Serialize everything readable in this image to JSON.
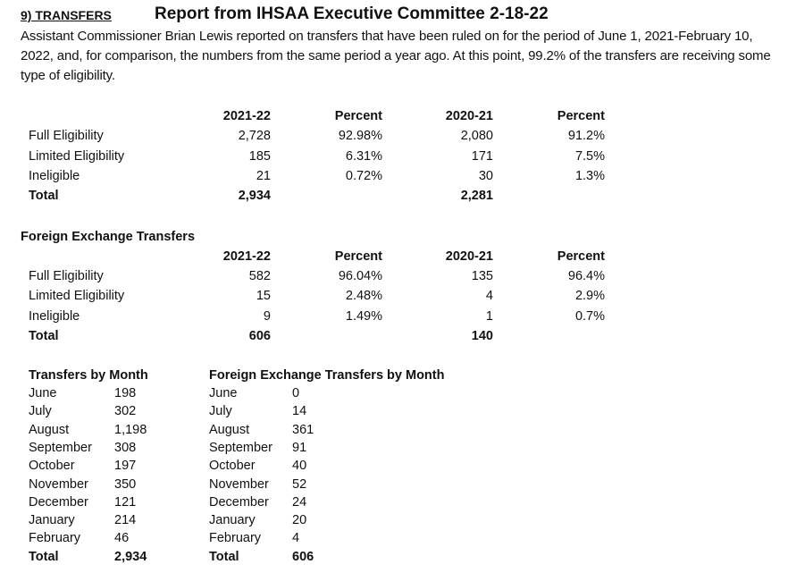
{
  "header": {
    "section": "9) TRANSFERS",
    "title": "Report from IHSAA Executive Committee 2-18-22",
    "paragraph": "Assistant Commissioner Brian Lewis reported on transfers that have been ruled on for the period of June 1, 2021-February 10, 2022, and, for comparison, the numbers from the same period a year ago. At this point, 99.2% of the transfers are receiving some type of eligibility."
  },
  "transfers_table": {
    "columns": [
      "2021-22",
      "Percent",
      "2020-21",
      "Percent"
    ],
    "rows": [
      {
        "label": "Full Eligibility",
        "values": [
          "2,728",
          "92.98%",
          "2,080",
          "91.2%"
        ]
      },
      {
        "label": "Limited Eligibility",
        "values": [
          "185",
          "6.31%",
          "171",
          "7.5%"
        ]
      },
      {
        "label": "Ineligible",
        "values": [
          "21",
          "0.72%",
          "30",
          "1.3%"
        ]
      },
      {
        "label": "Total",
        "values": [
          "2,934",
          "",
          "2,281",
          ""
        ],
        "bold": true
      }
    ]
  },
  "foreign_table": {
    "title": "Foreign Exchange Transfers",
    "columns": [
      "2021-22",
      "Percent",
      "2020-21",
      "Percent"
    ],
    "rows": [
      {
        "label": "Full Eligibility",
        "values": [
          "582",
          "96.04%",
          "135",
          "96.4%"
        ]
      },
      {
        "label": "Limited Eligibility",
        "values": [
          "15",
          "2.48%",
          "4",
          "2.9%"
        ]
      },
      {
        "label": "Ineligible",
        "values": [
          "9",
          "1.49%",
          "1",
          "0.7%"
        ]
      },
      {
        "label": "Total",
        "values": [
          "606",
          "",
          "140",
          ""
        ],
        "bold": true
      }
    ]
  },
  "transfers_by_month": {
    "title": "Transfers by Month",
    "rows": [
      {
        "month": "June",
        "value": "198"
      },
      {
        "month": "July",
        "value": "302"
      },
      {
        "month": "August",
        "value": "1,198"
      },
      {
        "month": "September",
        "value": "308"
      },
      {
        "month": "October",
        "value": "197"
      },
      {
        "month": "November",
        "value": "350"
      },
      {
        "month": "December",
        "value": "121"
      },
      {
        "month": "January",
        "value": "214"
      },
      {
        "month": "February",
        "value": "46"
      },
      {
        "month": "Total",
        "value": "2,934",
        "bold": true
      }
    ]
  },
  "foreign_by_month": {
    "title": "Foreign Exchange Transfers by Month",
    "rows": [
      {
        "month": "June",
        "value": "0"
      },
      {
        "month": "July",
        "value": "14"
      },
      {
        "month": "August",
        "value": "361"
      },
      {
        "month": "September",
        "value": "91"
      },
      {
        "month": "October",
        "value": "40"
      },
      {
        "month": "November",
        "value": "52"
      },
      {
        "month": "December",
        "value": "24"
      },
      {
        "month": "January",
        "value": "20"
      },
      {
        "month": "February",
        "value": "4"
      },
      {
        "month": "Total",
        "value": "606",
        "bold": true
      }
    ]
  }
}
